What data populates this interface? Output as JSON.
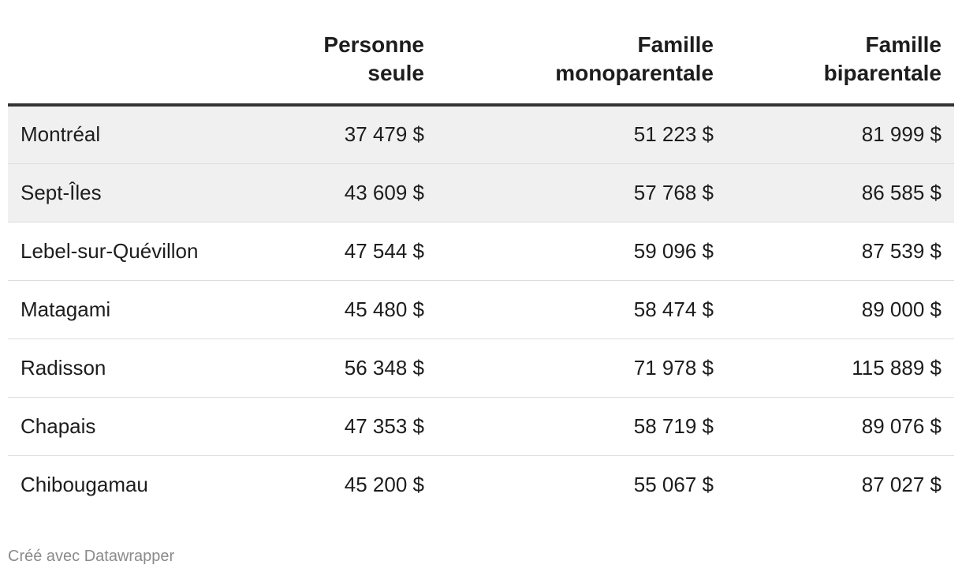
{
  "chart_data": {
    "type": "table",
    "columns": [
      {
        "lines": [
          "",
          ""
        ]
      },
      {
        "lines": [
          "Personne",
          "seule"
        ]
      },
      {
        "lines": [
          "Famille",
          "monoparentale"
        ]
      },
      {
        "lines": [
          "Famille",
          "biparentale"
        ]
      }
    ],
    "rows": [
      {
        "city": "Montréal",
        "seule": "37 479 $",
        "mono": "51 223 $",
        "bi": "81 999 $",
        "highlight": true
      },
      {
        "city": "Sept-Îles",
        "seule": "43 609 $",
        "mono": "57 768 $",
        "bi": "86 585 $",
        "highlight": true
      },
      {
        "city": "Lebel-sur-Quévillon",
        "seule": "47 544 $",
        "mono": "59 096 $",
        "bi": "87 539 $",
        "highlight": false
      },
      {
        "city": "Matagami",
        "seule": "45 480 $",
        "mono": "58 474 $",
        "bi": "89 000 $",
        "highlight": false
      },
      {
        "city": "Radisson",
        "seule": "56 348 $",
        "mono": "71 978 $",
        "bi": "115 889 $",
        "highlight": false
      },
      {
        "city": "Chapais",
        "seule": "47 353 $",
        "mono": "58 719 $",
        "bi": "89 076 $",
        "highlight": false
      },
      {
        "city": "Chibougamau",
        "seule": "45 200 $",
        "mono": "55 067 $",
        "bi": "87 027 $",
        "highlight": false
      }
    ],
    "highlight_color": "#f0f0f0"
  },
  "footer": {
    "credit": "Créé avec Datawrapper"
  }
}
